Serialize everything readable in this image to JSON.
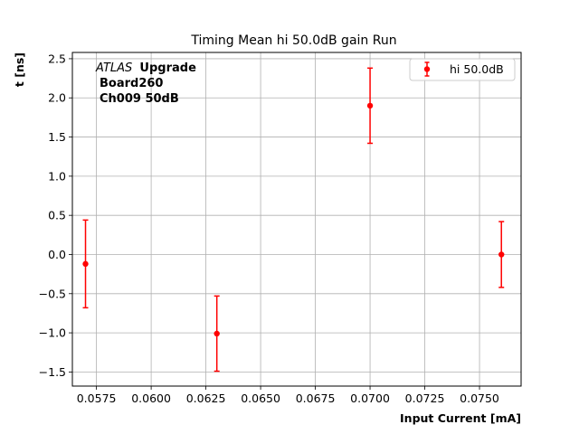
{
  "chart_data": {
    "type": "scatter",
    "title": "Timing Mean hi 50.0dB gain Run",
    "xlabel": "Input Current [mA]",
    "ylabel": "t [ns]",
    "xlim": [
      0.0564,
      0.0769
    ],
    "ylim": [
      -1.68,
      2.58
    ],
    "xticks": [
      0.0575,
      0.06,
      0.0625,
      0.065,
      0.0675,
      0.07,
      0.0725,
      0.075
    ],
    "xtick_labels": [
      "0.0575",
      "0.0600",
      "0.0625",
      "0.0650",
      "0.0675",
      "0.0700",
      "0.0725",
      "0.0750"
    ],
    "yticks": [
      -1.5,
      -1.0,
      -0.5,
      0.0,
      0.5,
      1.0,
      1.5,
      2.0,
      2.5
    ],
    "ytick_labels": [
      "−1.5",
      "−1.0",
      "−0.5",
      "0.0",
      "0.5",
      "1.0",
      "1.5",
      "2.0",
      "2.5"
    ],
    "grid": true,
    "legend_position": "top-right",
    "series": [
      {
        "name": "hi 50.0dB",
        "color": "#ff0000",
        "x": [
          0.057,
          0.063,
          0.07,
          0.076
        ],
        "y": [
          -0.12,
          -1.01,
          1.9,
          0.0
        ],
        "yerr": [
          0.56,
          0.48,
          0.48,
          0.42
        ]
      }
    ],
    "annotation": {
      "italic": "ATLAS",
      "bold": "Upgrade",
      "line2": "Board260",
      "line3": "Ch009 50dB"
    }
  }
}
